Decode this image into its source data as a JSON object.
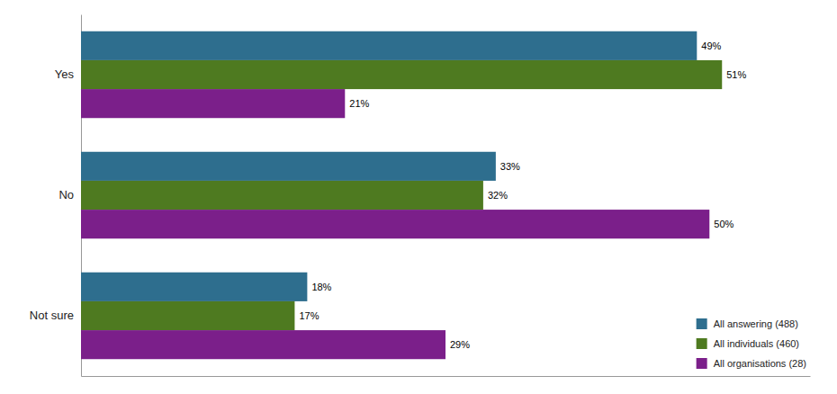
{
  "chart_data": {
    "type": "bar",
    "orientation": "horizontal",
    "categories": [
      "Yes",
      "No",
      "Not sure"
    ],
    "series": [
      {
        "name": "All answering (488)",
        "color": "#2E6E8E",
        "values": [
          49,
          33,
          18
        ],
        "value_labels": [
          "49%",
          "33%",
          "18%"
        ]
      },
      {
        "name": "All individuals (460)",
        "color": "#4E7A20",
        "values": [
          51,
          32,
          17
        ],
        "value_labels": [
          "51%",
          "32%",
          "17%"
        ]
      },
      {
        "name": "All organisations (28)",
        "color": "#7B1F8A",
        "values": [
          21,
          50,
          29
        ],
        "value_labels": [
          "21%",
          "50%",
          "29%"
        ]
      }
    ],
    "xlim": [
      0,
      58
    ],
    "data_labels": true,
    "legend": "lower right",
    "tick_labels": "y"
  }
}
